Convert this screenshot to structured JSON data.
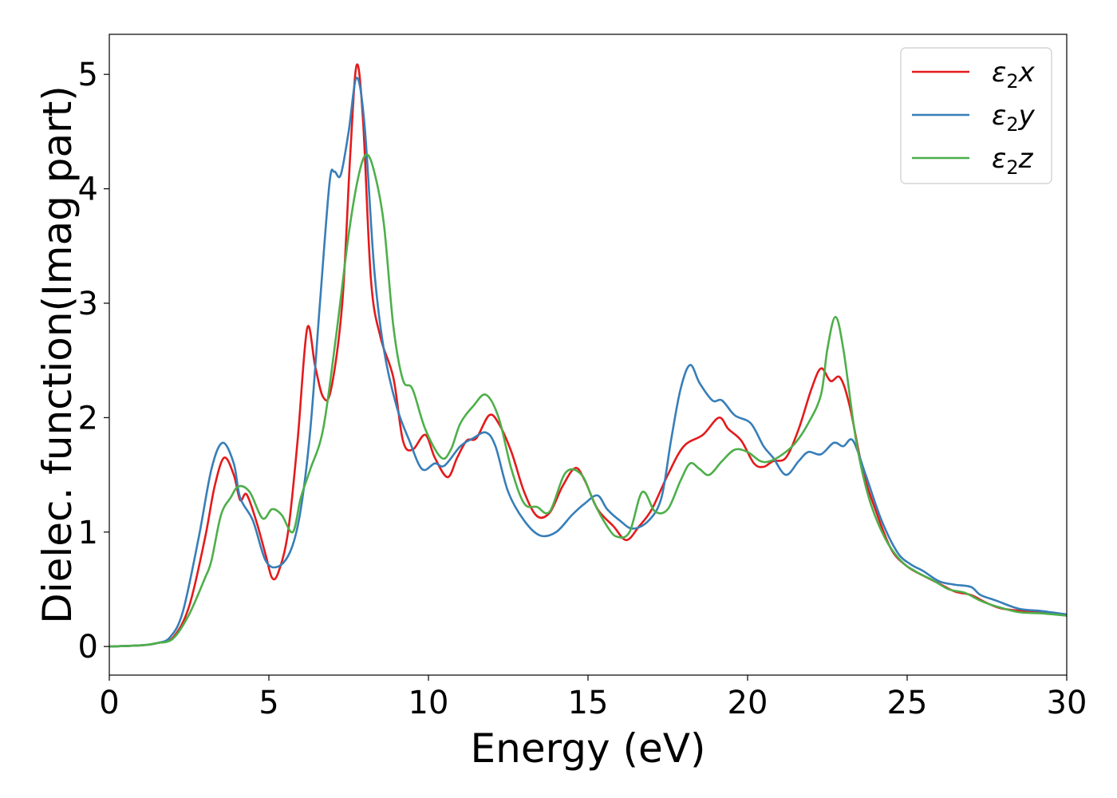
{
  "chart_data": {
    "type": "line",
    "xlabel": "Energy (eV)",
    "ylabel": "Dielec. function(Imag part)",
    "xlim": [
      0,
      30
    ],
    "ylim": [
      -0.25,
      5.35
    ],
    "xticks": [
      0,
      5,
      10,
      15,
      20,
      25,
      30
    ],
    "yticks": [
      0,
      1,
      2,
      3,
      4,
      5
    ],
    "grid": false,
    "legend_position": "top-right",
    "series": [
      {
        "name": "ε₂x",
        "label_base": "ε",
        "label_sub": "2",
        "label_suffix": "x",
        "color": "#e41a1c",
        "points": [
          [
            0,
            0
          ],
          [
            1,
            0.01
          ],
          [
            1.5,
            0.03
          ],
          [
            2,
            0.08
          ],
          [
            2.5,
            0.35
          ],
          [
            3,
            0.95
          ],
          [
            3.3,
            1.4
          ],
          [
            3.6,
            1.65
          ],
          [
            3.9,
            1.5
          ],
          [
            4.1,
            1.28
          ],
          [
            4.3,
            1.33
          ],
          [
            4.6,
            1.1
          ],
          [
            4.9,
            0.8
          ],
          [
            5.1,
            0.6
          ],
          [
            5.3,
            0.65
          ],
          [
            5.6,
            1.0
          ],
          [
            5.9,
            1.8
          ],
          [
            6.2,
            2.78
          ],
          [
            6.45,
            2.45
          ],
          [
            6.7,
            2.18
          ],
          [
            6.95,
            2.25
          ],
          [
            7.3,
            3.0
          ],
          [
            7.55,
            4.3
          ],
          [
            7.75,
            5.08
          ],
          [
            7.95,
            4.6
          ],
          [
            8.2,
            3.2
          ],
          [
            8.5,
            2.7
          ],
          [
            8.9,
            2.35
          ],
          [
            9.2,
            1.8
          ],
          [
            9.5,
            1.72
          ],
          [
            9.9,
            1.85
          ],
          [
            10.2,
            1.65
          ],
          [
            10.6,
            1.48
          ],
          [
            10.9,
            1.65
          ],
          [
            11.2,
            1.8
          ],
          [
            11.5,
            1.82
          ],
          [
            11.9,
            2.02
          ],
          [
            12.2,
            1.95
          ],
          [
            12.6,
            1.7
          ],
          [
            13.0,
            1.35
          ],
          [
            13.4,
            1.14
          ],
          [
            13.8,
            1.17
          ],
          [
            14.2,
            1.4
          ],
          [
            14.6,
            1.56
          ],
          [
            14.9,
            1.45
          ],
          [
            15.3,
            1.2
          ],
          [
            15.8,
            1.05
          ],
          [
            16.2,
            0.93
          ],
          [
            16.6,
            1.05
          ],
          [
            17.0,
            1.2
          ],
          [
            17.5,
            1.5
          ],
          [
            18.0,
            1.75
          ],
          [
            18.6,
            1.85
          ],
          [
            19.1,
            2.0
          ],
          [
            19.4,
            1.9
          ],
          [
            19.8,
            1.8
          ],
          [
            20.2,
            1.6
          ],
          [
            20.5,
            1.57
          ],
          [
            20.8,
            1.62
          ],
          [
            21.2,
            1.65
          ],
          [
            21.6,
            1.9
          ],
          [
            22.0,
            2.25
          ],
          [
            22.3,
            2.43
          ],
          [
            22.6,
            2.32
          ],
          [
            22.9,
            2.35
          ],
          [
            23.2,
            2.1
          ],
          [
            23.6,
            1.55
          ],
          [
            24.0,
            1.2
          ],
          [
            24.5,
            0.85
          ],
          [
            25.0,
            0.7
          ],
          [
            25.5,
            0.62
          ],
          [
            26.0,
            0.55
          ],
          [
            26.5,
            0.48
          ],
          [
            27.0,
            0.45
          ],
          [
            27.5,
            0.38
          ],
          [
            28.0,
            0.33
          ],
          [
            29.0,
            0.3
          ],
          [
            30,
            0.27
          ]
        ]
      },
      {
        "name": "ε₂y",
        "label_base": "ε",
        "label_sub": "2",
        "label_suffix": "y",
        "color": "#377eb8",
        "points": [
          [
            0,
            0
          ],
          [
            1,
            0.01
          ],
          [
            1.5,
            0.03
          ],
          [
            1.9,
            0.08
          ],
          [
            2.3,
            0.3
          ],
          [
            2.8,
            0.95
          ],
          [
            3.2,
            1.55
          ],
          [
            3.55,
            1.78
          ],
          [
            3.9,
            1.6
          ],
          [
            4.1,
            1.3
          ],
          [
            4.5,
            1.1
          ],
          [
            4.9,
            0.75
          ],
          [
            5.3,
            0.7
          ],
          [
            5.7,
            0.85
          ],
          [
            6.0,
            1.2
          ],
          [
            6.3,
            1.9
          ],
          [
            6.6,
            3.0
          ],
          [
            6.9,
            4.05
          ],
          [
            7.05,
            4.15
          ],
          [
            7.25,
            4.12
          ],
          [
            7.5,
            4.5
          ],
          [
            7.75,
            4.97
          ],
          [
            8.0,
            4.55
          ],
          [
            8.3,
            3.3
          ],
          [
            8.6,
            2.6
          ],
          [
            9.0,
            2.1
          ],
          [
            9.4,
            1.8
          ],
          [
            9.8,
            1.55
          ],
          [
            10.2,
            1.6
          ],
          [
            10.5,
            1.58
          ],
          [
            11.0,
            1.75
          ],
          [
            11.4,
            1.82
          ],
          [
            11.8,
            1.87
          ],
          [
            12.1,
            1.75
          ],
          [
            12.5,
            1.35
          ],
          [
            13.0,
            1.1
          ],
          [
            13.5,
            0.97
          ],
          [
            14.0,
            1.0
          ],
          [
            14.5,
            1.15
          ],
          [
            14.9,
            1.25
          ],
          [
            15.3,
            1.32
          ],
          [
            15.6,
            1.2
          ],
          [
            16.0,
            1.1
          ],
          [
            16.4,
            1.03
          ],
          [
            16.9,
            1.1
          ],
          [
            17.3,
            1.3
          ],
          [
            17.6,
            1.8
          ],
          [
            17.9,
            2.25
          ],
          [
            18.2,
            2.46
          ],
          [
            18.5,
            2.3
          ],
          [
            18.9,
            2.15
          ],
          [
            19.2,
            2.15
          ],
          [
            19.6,
            2.02
          ],
          [
            20.1,
            1.95
          ],
          [
            20.5,
            1.75
          ],
          [
            20.8,
            1.65
          ],
          [
            21.2,
            1.5
          ],
          [
            21.6,
            1.62
          ],
          [
            21.9,
            1.7
          ],
          [
            22.3,
            1.68
          ],
          [
            22.7,
            1.78
          ],
          [
            23.0,
            1.75
          ],
          [
            23.3,
            1.8
          ],
          [
            23.7,
            1.5
          ],
          [
            24.2,
            1.1
          ],
          [
            24.7,
            0.82
          ],
          [
            25.1,
            0.72
          ],
          [
            25.5,
            0.66
          ],
          [
            26.0,
            0.57
          ],
          [
            26.5,
            0.54
          ],
          [
            27.0,
            0.52
          ],
          [
            27.3,
            0.45
          ],
          [
            27.8,
            0.4
          ],
          [
            28.5,
            0.33
          ],
          [
            29.2,
            0.31
          ],
          [
            30,
            0.28
          ]
        ]
      },
      {
        "name": "ε₂z",
        "label_base": "ε",
        "label_sub": "2",
        "label_suffix": "z",
        "color": "#4daf4a",
        "points": [
          [
            0,
            0
          ],
          [
            1,
            0.01
          ],
          [
            1.5,
            0.03
          ],
          [
            2,
            0.07
          ],
          [
            2.5,
            0.28
          ],
          [
            3.0,
            0.6
          ],
          [
            3.2,
            0.75
          ],
          [
            3.5,
            1.15
          ],
          [
            3.8,
            1.3
          ],
          [
            4.05,
            1.4
          ],
          [
            4.4,
            1.35
          ],
          [
            4.8,
            1.12
          ],
          [
            5.1,
            1.2
          ],
          [
            5.4,
            1.15
          ],
          [
            5.75,
            1.0
          ],
          [
            6.0,
            1.3
          ],
          [
            6.3,
            1.55
          ],
          [
            6.7,
            1.9
          ],
          [
            7.1,
            2.7
          ],
          [
            7.5,
            3.6
          ],
          [
            7.8,
            4.1
          ],
          [
            8.05,
            4.3
          ],
          [
            8.3,
            4.15
          ],
          [
            8.6,
            3.7
          ],
          [
            8.9,
            2.8
          ],
          [
            9.2,
            2.33
          ],
          [
            9.5,
            2.25
          ],
          [
            9.9,
            1.9
          ],
          [
            10.4,
            1.65
          ],
          [
            10.7,
            1.72
          ],
          [
            11.0,
            1.95
          ],
          [
            11.4,
            2.1
          ],
          [
            11.8,
            2.2
          ],
          [
            12.2,
            2.0
          ],
          [
            12.6,
            1.55
          ],
          [
            13.0,
            1.25
          ],
          [
            13.4,
            1.22
          ],
          [
            13.8,
            1.18
          ],
          [
            14.3,
            1.52
          ],
          [
            14.8,
            1.5
          ],
          [
            15.2,
            1.25
          ],
          [
            15.6,
            1.05
          ],
          [
            15.9,
            0.96
          ],
          [
            16.3,
            1.0
          ],
          [
            16.7,
            1.35
          ],
          [
            17.1,
            1.18
          ],
          [
            17.5,
            1.2
          ],
          [
            17.9,
            1.45
          ],
          [
            18.2,
            1.6
          ],
          [
            18.5,
            1.55
          ],
          [
            18.8,
            1.5
          ],
          [
            19.2,
            1.62
          ],
          [
            19.6,
            1.72
          ],
          [
            20.0,
            1.7
          ],
          [
            20.4,
            1.62
          ],
          [
            20.7,
            1.62
          ],
          [
            21.1,
            1.68
          ],
          [
            21.5,
            1.78
          ],
          [
            21.9,
            1.95
          ],
          [
            22.3,
            2.2
          ],
          [
            22.5,
            2.6
          ],
          [
            22.75,
            2.88
          ],
          [
            23.0,
            2.6
          ],
          [
            23.4,
            1.8
          ],
          [
            23.8,
            1.3
          ],
          [
            24.3,
            0.95
          ],
          [
            24.8,
            0.75
          ],
          [
            25.3,
            0.65
          ],
          [
            25.8,
            0.58
          ],
          [
            26.3,
            0.5
          ],
          [
            26.8,
            0.47
          ],
          [
            27.3,
            0.4
          ],
          [
            27.8,
            0.35
          ],
          [
            28.5,
            0.3
          ],
          [
            29.2,
            0.29
          ],
          [
            30,
            0.27
          ]
        ]
      }
    ]
  }
}
